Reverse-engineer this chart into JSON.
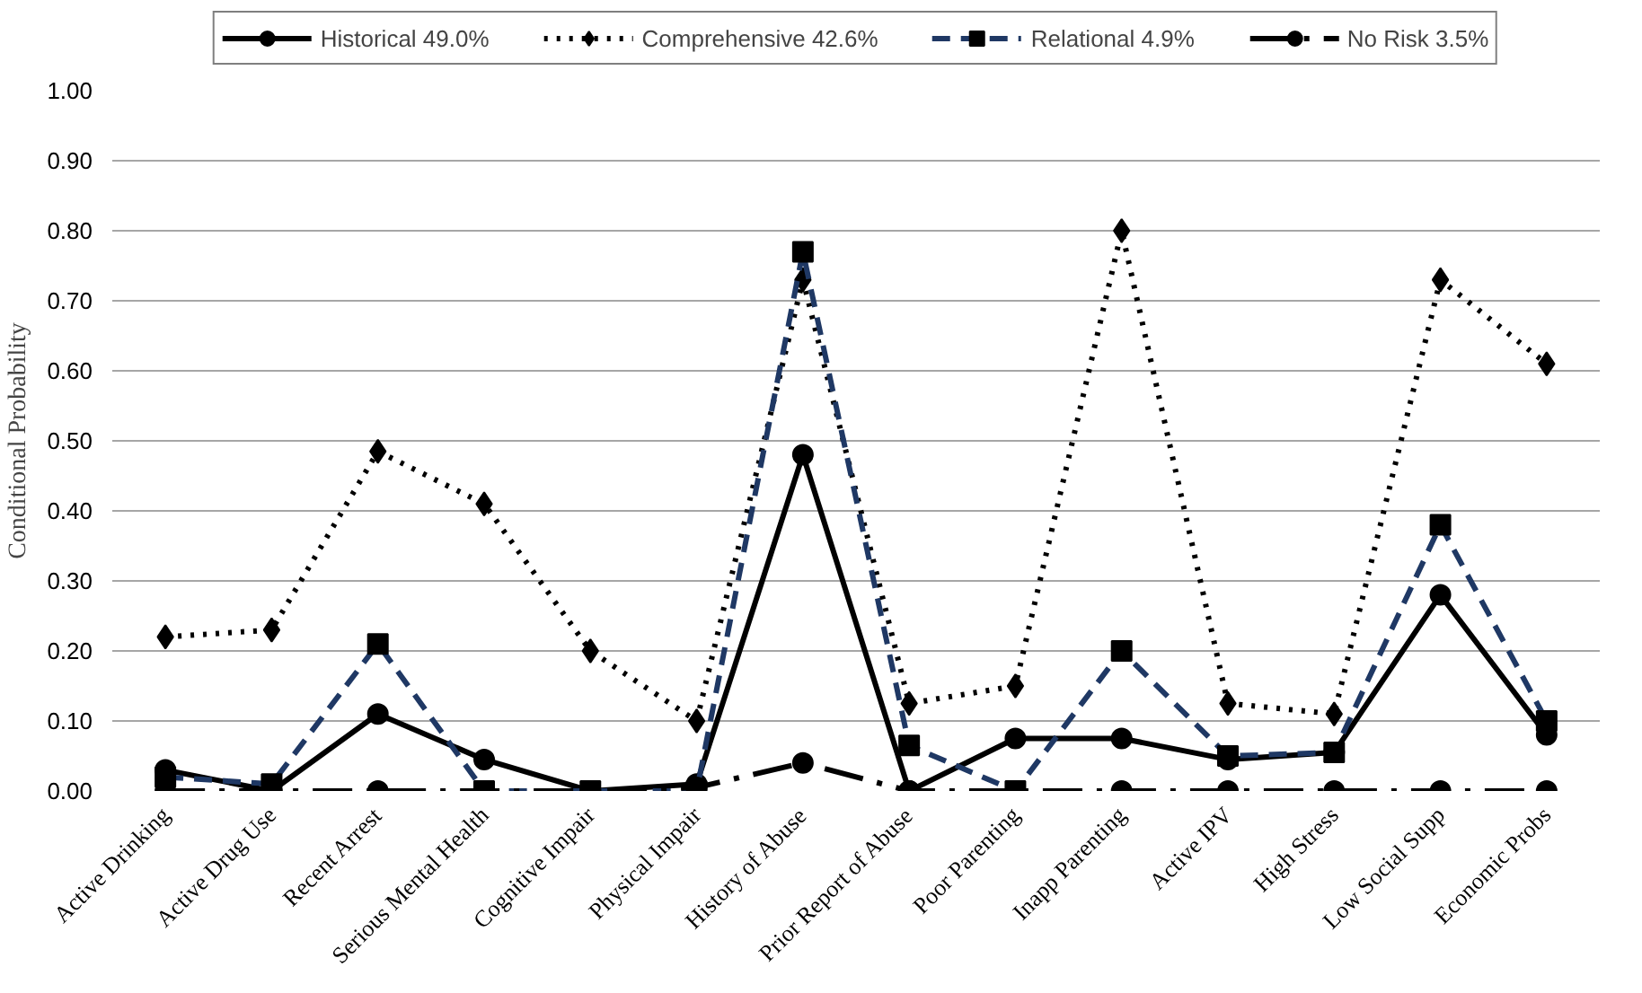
{
  "chart_data": {
    "type": "line",
    "ylabel": "Conditional Probability",
    "categories": [
      "Active Drinking",
      "Active Drug Use",
      "Recent Arrest",
      "Serious Mental Health",
      "Cognitive Impair",
      "Physical Impair",
      "History of Abuse",
      "Prior Report of Abuse",
      "Poor Parenting",
      "Inapp Parenting",
      "Active IPV",
      "High Stress",
      "Low Social Supp",
      "Economic Probs"
    ],
    "series": [
      {
        "name": "Historical 49.0%",
        "color": "#000000",
        "marker": "circle",
        "line_style": "solid",
        "values": [
          0.03,
          0.0,
          0.11,
          0.045,
          0.0,
          0.01,
          0.48,
          0.0,
          0.075,
          0.075,
          0.045,
          0.055,
          0.28,
          0.08
        ]
      },
      {
        "name": "Comprehensive 42.6%",
        "color": "#000000",
        "marker": "diamond",
        "line_style": "dotted",
        "values": [
          0.22,
          0.23,
          0.485,
          0.41,
          0.2,
          0.1,
          0.73,
          0.125,
          0.15,
          0.8,
          0.125,
          0.11,
          0.73,
          0.61
        ]
      },
      {
        "name": "Relational 4.9%",
        "color": "#1f3864",
        "marker": "square",
        "line_style": "dashed",
        "values": [
          0.02,
          0.01,
          0.21,
          0.0,
          0.0,
          0.0,
          0.77,
          0.065,
          0.0,
          0.2,
          0.05,
          0.055,
          0.38,
          0.1
        ]
      },
      {
        "name": "No Risk 3.5%",
        "color": "#000000",
        "marker": "circle",
        "line_style": "dashed",
        "values": [
          0.0,
          0.0,
          0.0,
          0.0,
          0.0,
          0.005,
          0.04,
          0.0,
          0.0,
          0.0,
          0.0,
          0.0,
          0.0,
          0.0
        ]
      }
    ],
    "ylim": [
      0,
      1
    ],
    "yticks": [
      {
        "value": 0,
        "label": "0.00"
      },
      {
        "value": 0.1,
        "label": "0.10"
      },
      {
        "value": 0.2,
        "label": "0.20"
      },
      {
        "value": 0.3,
        "label": "0.30"
      },
      {
        "value": 0.4,
        "label": "0.40"
      },
      {
        "value": 0.5,
        "label": "0.50"
      },
      {
        "value": 0.6,
        "label": "0.60"
      },
      {
        "value": 0.7,
        "label": "0.70"
      },
      {
        "value": 0.8,
        "label": "0.80"
      },
      {
        "value": 0.9,
        "label": "0.90"
      },
      {
        "value": 1,
        "label": "1.00"
      }
    ],
    "grid": "y",
    "legend": "top"
  }
}
